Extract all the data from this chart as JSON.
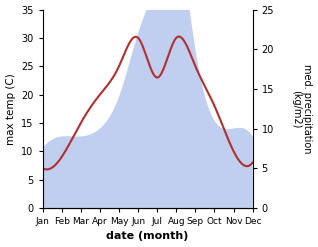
{
  "months": [
    "Jan",
    "Feb",
    "Mar",
    "Apr",
    "May",
    "Jun",
    "Jul",
    "Aug",
    "Sep",
    "Oct",
    "Nov",
    "Dec"
  ],
  "x": [
    0,
    1,
    2,
    3,
    4,
    5,
    6,
    7,
    8,
    9,
    10,
    11
  ],
  "precipitation": [
    7.5,
    9,
    9,
    10,
    14,
    22,
    29,
    34,
    20,
    11,
    10,
    9
  ],
  "temperature": [
    7,
    9,
    15,
    20,
    25,
    30,
    23,
    30,
    25,
    18,
    10,
    8
  ],
  "precip_color": "#c0cef0",
  "temp_color": "#b03030",
  "temp_ylim": [
    0,
    35
  ],
  "precip_ylim": [
    0,
    25
  ],
  "ylabel_left": "max temp (C)",
  "ylabel_right": "med. precipitation\n(kg/m2)",
  "xlabel": "date (month)",
  "left_yticks": [
    0,
    5,
    10,
    15,
    20,
    25,
    30,
    35
  ],
  "right_yticks": [
    0,
    5,
    10,
    15,
    20,
    25
  ],
  "figsize": [
    3.18,
    2.47
  ],
  "dpi": 100
}
